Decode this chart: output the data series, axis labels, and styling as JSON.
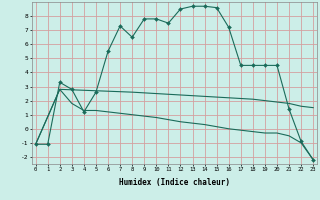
{
  "xlabel": "Humidex (Indice chaleur)",
  "background_color": "#cceee8",
  "grid_color": "#d4a0a0",
  "line_color": "#1a6b5a",
  "curve1_x": [
    0,
    1,
    2,
    3,
    4,
    5,
    6,
    7,
    8,
    9,
    10,
    11,
    12,
    13,
    14,
    15,
    16,
    17,
    18,
    19,
    20,
    21,
    22,
    23
  ],
  "curve1_y": [
    -1.1,
    -1.1,
    3.3,
    2.8,
    1.2,
    2.6,
    5.5,
    7.3,
    6.5,
    7.8,
    7.8,
    7.5,
    8.5,
    8.7,
    8.7,
    8.6,
    7.2,
    4.5,
    4.5,
    4.5,
    4.5,
    1.4,
    -0.9,
    -2.2
  ],
  "curve2_x": [
    0,
    2,
    5,
    8,
    10,
    12,
    14,
    16,
    18,
    19,
    20,
    21,
    22,
    23
  ],
  "curve2_y": [
    -1.1,
    2.8,
    2.7,
    2.6,
    2.5,
    2.4,
    2.3,
    2.2,
    2.1,
    2.0,
    1.9,
    1.8,
    1.6,
    1.5
  ],
  "curve3_x": [
    0,
    2,
    3,
    4,
    5,
    6,
    8,
    10,
    12,
    14,
    16,
    18,
    19,
    20,
    21,
    22,
    23
  ],
  "curve3_y": [
    -1.1,
    2.8,
    1.8,
    1.3,
    1.3,
    1.2,
    1.0,
    0.8,
    0.5,
    0.3,
    0.0,
    -0.2,
    -0.3,
    -0.3,
    -0.5,
    -1.0,
    -2.2
  ],
  "xlim": [
    0,
    23
  ],
  "ylim": [
    -2.5,
    9.0
  ],
  "yticks": [
    -2,
    -1,
    0,
    1,
    2,
    3,
    4,
    5,
    6,
    7,
    8
  ],
  "xticks": [
    0,
    1,
    2,
    3,
    4,
    5,
    6,
    7,
    8,
    9,
    10,
    11,
    12,
    13,
    14,
    15,
    16,
    17,
    18,
    19,
    20,
    21,
    22,
    23
  ]
}
